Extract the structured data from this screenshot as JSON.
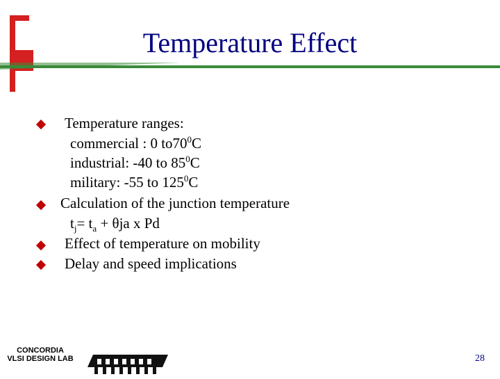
{
  "slide": {
    "title": "Temperature Effect",
    "bullets": [
      {
        "line": "Temperature ranges:",
        "subitems": [
          {
            "label": "commercial : 0 to70",
            "sup": "0",
            "unit": "C"
          },
          {
            "label": "industrial: -40 to 85",
            "sup": "0",
            "unit": "C"
          },
          {
            "label": "military: -55 to 125",
            "sup": "0",
            "unit": "C"
          }
        ]
      },
      {
        "line": "Calculation of  the junction temperature",
        "formula": {
          "t": "t",
          "sub_j": "j",
          "eq": "= t",
          "sub_a": "a",
          "rest": " + θja x Pd"
        }
      },
      {
        "line": "Effect of temperature on mobility"
      },
      {
        "line": "Delay and speed implications"
      }
    ],
    "colors": {
      "title": "#000080",
      "bullet": "#c00000",
      "accent_red": "#d42020",
      "accent_green": "#3a8a3a"
    }
  },
  "footer": {
    "logo_line1": "CONCORDIA",
    "logo_line2": "VLSI DESIGN LAB",
    "page_number": "28"
  }
}
